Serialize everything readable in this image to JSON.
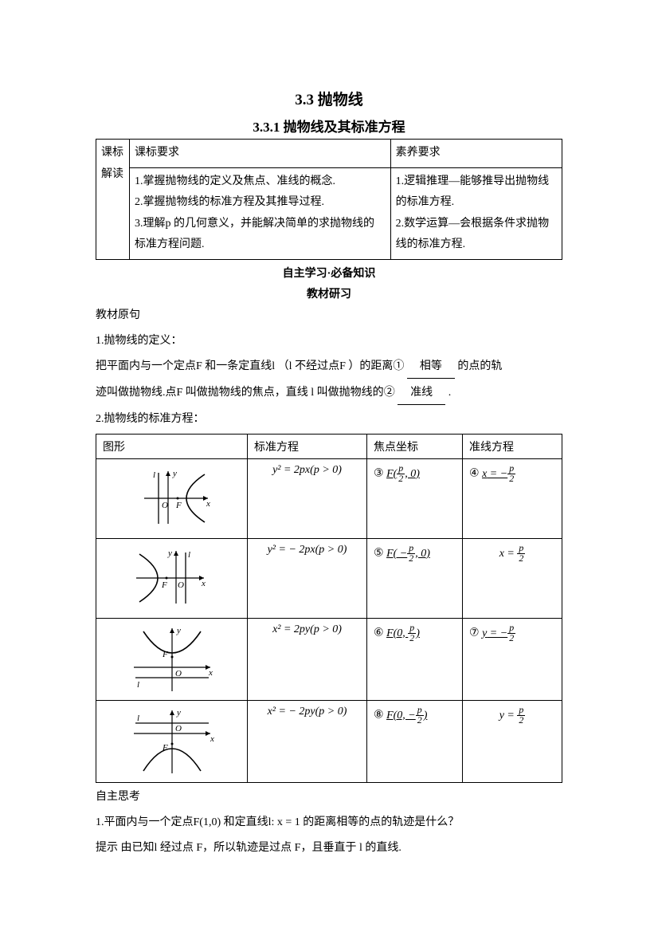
{
  "title_main": "3.3  抛物线",
  "title_sub": "3.3.1  抛物线及其标准方程",
  "outline_table": {
    "left_header": "课标解读",
    "col1_header": "课标要求",
    "col2_header": "素养要求",
    "col1_body": "1.掌握抛物线的定义及焦点、准线的概念.\n2.掌握抛物线的标准方程及其推导过程.\n3.理解p 的几何意义，并能解决简单的求抛物线的标准方程问题.",
    "col2_body": "1.逻辑推理—能够推导出抛物线的标准方程.\n2.数学运算—会根据条件求抛物线的标准方程."
  },
  "section_head_line1": "自主学习·必备知识",
  "section_head_line2": "教材研习",
  "prelabel": "教材原句",
  "def_heading": "1.抛物线的定义：",
  "def_para1_pre": "把平面内与一个定点F 和一条定直线l  （l 不经过点F ）的距离",
  "def_blank1_num": "①",
  "def_blank1_val": "相等",
  "def_para1_post": "的点的轨",
  "def_para2_pre": "迹叫做抛物线.点F 叫做抛物线的焦点，直线 l 叫做抛物线的",
  "def_blank2_num": "②",
  "def_blank2_val": "准线",
  "def_para2_post": ".",
  "forms_heading": "2.抛物线的标准方程：",
  "forms_table": {
    "headers": [
      "图形",
      "标准方程",
      "焦点坐标",
      "准线方程"
    ],
    "rows": [
      {
        "eq": "y² = 2px(p > 0)",
        "focus_num": "③",
        "focus_val_html": "F(<span class='frac'><span class='n it'>p</span><span class='d'>2</span></span>, 0)",
        "dir_num": "④",
        "dir_val_html": "<span class='it'>x</span> = −<span class='frac'><span class='n it'>p</span><span class='d'>2</span></span>",
        "graph": "right"
      },
      {
        "eq": "y² = − 2px(p > 0)",
        "focus_num": "⑤",
        "focus_val_html": "F( −<span class='frac'><span class='n it'>p</span><span class='d'>2</span></span>, 0)",
        "dir_num": "",
        "dir_val_html": "<span class='it'>x</span> = <span class='frac'><span class='n it'>p</span><span class='d'>2</span></span>",
        "graph": "left"
      },
      {
        "eq": "x² = 2py(p > 0)",
        "focus_num": "⑥",
        "focus_val_html": "F(0, <span class='frac'><span class='n it'>p</span><span class='d'>2</span></span>)",
        "dir_num": "⑦",
        "dir_val_html": "<span class='it'>y</span> = −<span class='frac'><span class='n it'>p</span><span class='d'>2</span></span>",
        "graph": "up"
      },
      {
        "eq": "x² = − 2py(p > 0)",
        "focus_num": "⑧",
        "focus_val_html": "F(0, −<span class='frac'><span class='n it'>p</span><span class='d'>2</span></span>)",
        "dir_num": "",
        "dir_val_html": "<span class='it'>y</span> = <span class='frac'><span class='n it'>p</span><span class='d'>2</span></span>",
        "graph": "down"
      }
    ]
  },
  "thinking_head": "自主思考",
  "thinking_q": "1.平面内与一个定点F(1,0) 和定直线l: x = 1 的距离相等的点的轨迹是什么？",
  "thinking_a": "提示  由已知l 经过点 F，所以轨迹是过点 F，且垂直于 l 的直线.",
  "colors": {
    "text": "#000000",
    "background": "#ffffff",
    "border": "#000000"
  },
  "fontsizes": {
    "h1": 19,
    "h2": 17,
    "body": 14
  }
}
